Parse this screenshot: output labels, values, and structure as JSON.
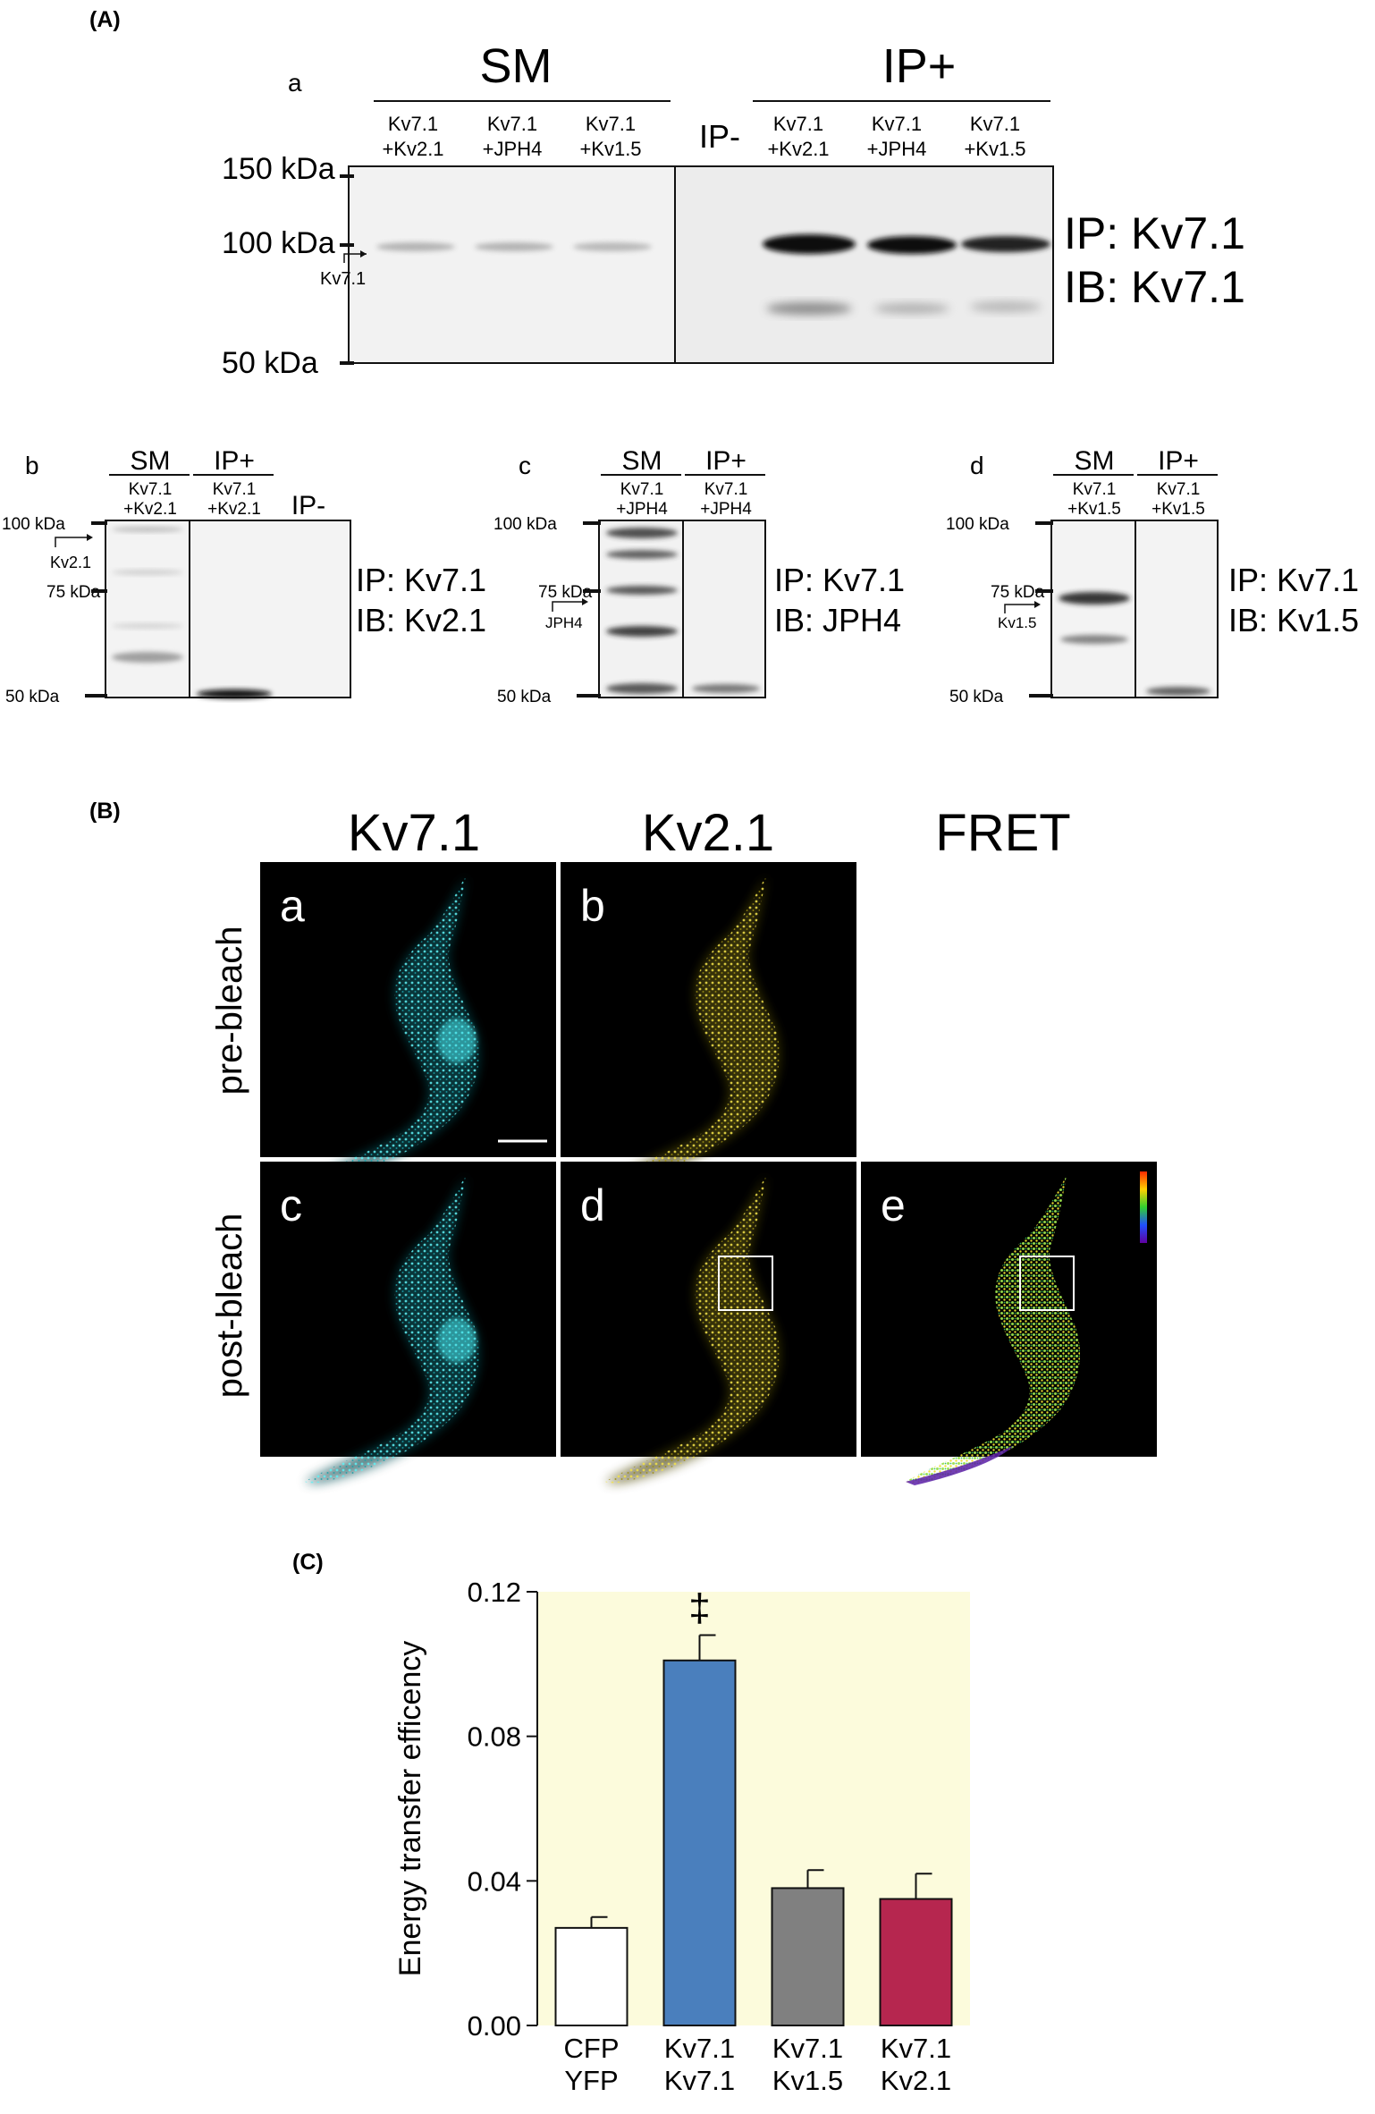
{
  "panelA": {
    "label": "(A)",
    "sub_a": "a",
    "sm_header": "SM",
    "ip_plus_header": "IP+",
    "ip_minus": "IP-",
    "lanes_sm": [
      {
        "l1": "Kv7.1",
        "l2": "+Kv2.1"
      },
      {
        "l1": "Kv7.1",
        "l2": "+JPH4"
      },
      {
        "l1": "Kv7.1",
        "l2": "+Kv1.5"
      }
    ],
    "lanes_ip": [
      {
        "l1": "Kv7.1",
        "l2": "+Kv2.1"
      },
      {
        "l1": "Kv7.1",
        "l2": "+JPH4"
      },
      {
        "l1": "Kv7.1",
        "l2": "+Kv1.5"
      }
    ],
    "mw": [
      "150 kDa",
      "100 kDa",
      "50 kDa"
    ],
    "band_arrow": "Kv7.1",
    "ip_label": "IP: Kv7.1",
    "ib_label": "IB: Kv7.1",
    "small_blots": [
      {
        "sub": "b",
        "sm": "SM",
        "ipp": "IP+",
        "lane1": [
          "Kv7.1",
          "+Kv2.1"
        ],
        "lane2": [
          "Kv7.1",
          "+Kv2.1"
        ],
        "ipm": "IP-",
        "mw": [
          "100 kDa",
          "75 kDa",
          "50 kDa"
        ],
        "arrow": "Kv2.1",
        "ip": "IP: Kv7.1",
        "ib": "IB: Kv2.1"
      },
      {
        "sub": "c",
        "sm": "SM",
        "ipp": "IP+",
        "lane1": [
          "Kv7.1",
          "+JPH4"
        ],
        "lane2": [
          "Kv7.1",
          "+JPH4"
        ],
        "ipm": "",
        "mw": [
          "100 kDa",
          "75 kDa",
          "50 kDa"
        ],
        "arrow": "JPH4",
        "ip": "IP: Kv7.1",
        "ib": "IB: JPH4"
      },
      {
        "sub": "d",
        "sm": "SM",
        "ipp": "IP+",
        "lane1": [
          "Kv7.1",
          "+Kv1.5"
        ],
        "lane2": [
          "Kv7.1",
          "+Kv1.5"
        ],
        "ipm": "",
        "mw": [
          "100 kDa",
          "75 kDa",
          "50 kDa"
        ],
        "arrow": "Kv1.5",
        "ip": "IP: Kv7.1",
        "ib": "IB: Kv1.5"
      }
    ]
  },
  "panelB": {
    "label": "(B)",
    "col_titles": [
      "Kv7.1",
      "Kv2.1",
      "FRET"
    ],
    "row_titles": [
      "pre-bleach",
      "post-bleach"
    ],
    "tiles": [
      "a",
      "b",
      "c",
      "d",
      "e"
    ],
    "colors": {
      "cfp": "#33c6cc",
      "yfp": "#c9b81d"
    }
  },
  "panelC": {
    "label": "(C)",
    "significance": "‡",
    "chart_data": {
      "type": "bar",
      "categories": [
        [
          "CFP",
          "YFP"
        ],
        [
          "Kv7.1",
          "Kv7.1"
        ],
        [
          "Kv7.1",
          "Kv1.5"
        ],
        [
          "Kv7.1",
          "Kv2.1"
        ]
      ],
      "values": [
        0.027,
        0.101,
        0.038,
        0.035
      ],
      "errors": [
        0.003,
        0.007,
        0.005,
        0.007
      ],
      "colors": [
        "#ffffff",
        "#4a7fbd",
        "#808080",
        "#b6264f"
      ],
      "background": "#fcfbdc",
      "ylabel": "Energy transfer efficency",
      "ylim": [
        0,
        0.12
      ],
      "yticks": [
        "0.00",
        "0.04",
        "0.08",
        "0.12"
      ],
      "yticks_values": [
        0,
        0.04,
        0.08,
        0.12
      ]
    }
  }
}
